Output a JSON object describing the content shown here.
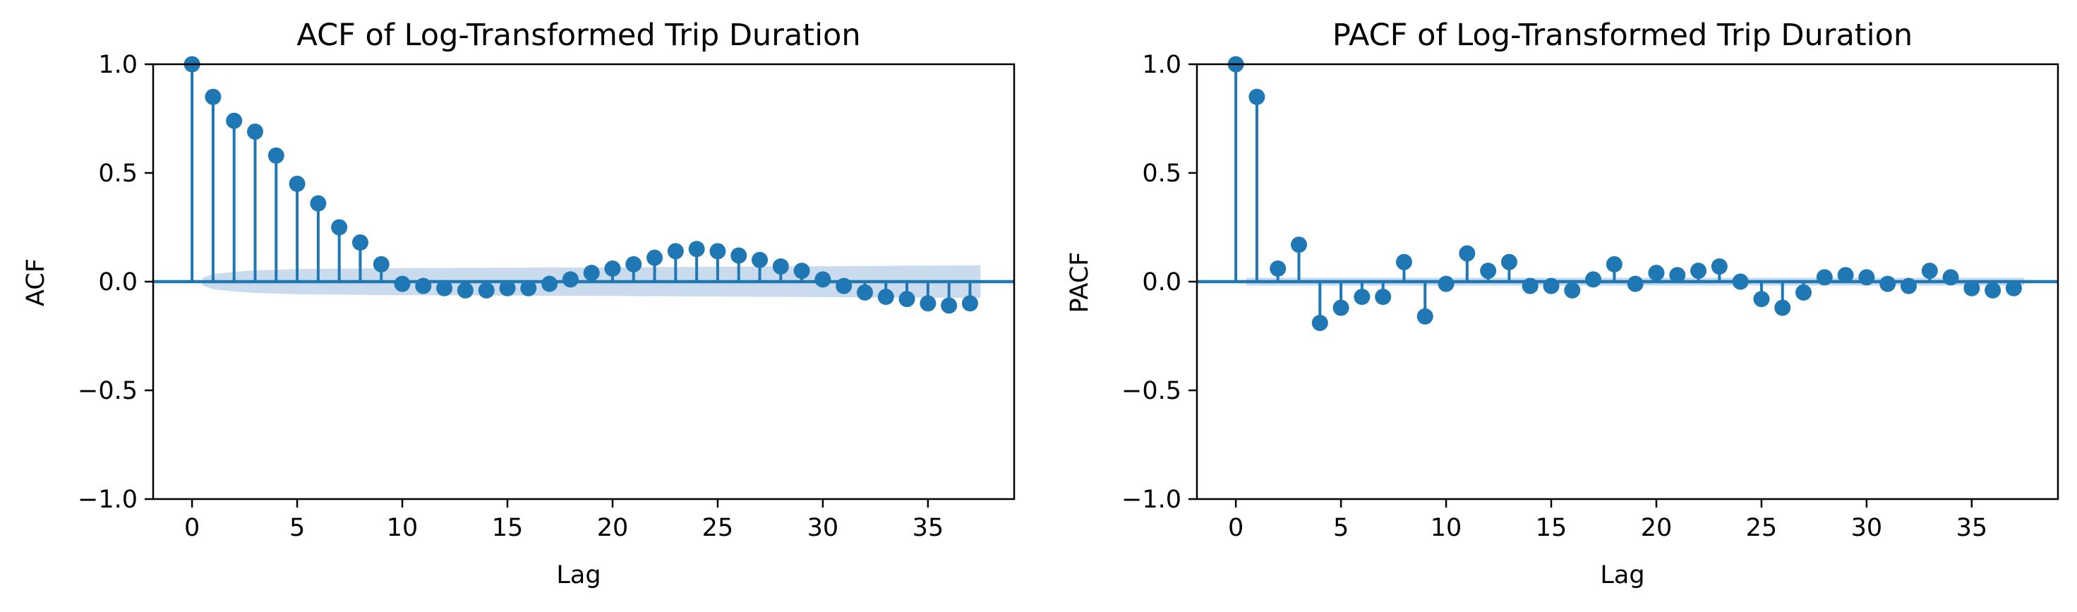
{
  "colors": {
    "series": "#1f77b4",
    "band": "#c6d9ec",
    "axis": "#000000"
  },
  "chart_data": [
    {
      "type": "stem",
      "title": "ACF of Log-Transformed Trip Duration",
      "xlabel": "Lag",
      "ylabel": "ACF",
      "xlim": [
        -1.85,
        39.1
      ],
      "ylim": [
        -1.0,
        1.0
      ],
      "xticks": [
        0,
        5,
        10,
        15,
        20,
        25,
        30,
        35
      ],
      "yticks": [
        -1.0,
        -0.5,
        0.0,
        0.5,
        1.0
      ],
      "xtick_labels": [
        "0",
        "5",
        "10",
        "15",
        "20",
        "25",
        "30",
        "35"
      ],
      "ytick_labels": [
        "−1.0",
        "−0.5",
        "0.0",
        "0.5",
        "1.0"
      ],
      "grid": false,
      "x": [
        0,
        1,
        2,
        3,
        4,
        5,
        6,
        7,
        8,
        9,
        10,
        11,
        12,
        13,
        14,
        15,
        16,
        17,
        18,
        19,
        20,
        21,
        22,
        23,
        24,
        25,
        26,
        27,
        28,
        29,
        30,
        31,
        32,
        33,
        34,
        35,
        36,
        37
      ],
      "values": [
        1.0,
        0.85,
        0.74,
        0.69,
        0.58,
        0.45,
        0.36,
        0.25,
        0.18,
        0.08,
        -0.01,
        -0.02,
        -0.03,
        -0.04,
        -0.04,
        -0.03,
        -0.03,
        -0.01,
        0.01,
        0.04,
        0.06,
        0.08,
        0.11,
        0.14,
        0.15,
        0.14,
        0.12,
        0.1,
        0.07,
        0.05,
        0.01,
        -0.02,
        -0.05,
        -0.07,
        -0.08,
        -0.1,
        -0.11,
        -0.1
      ],
      "confidence_band": {
        "x": [
          0.5,
          1,
          2,
          3,
          5,
          10,
          20,
          30,
          37.5
        ],
        "upper": [
          0.018,
          0.035,
          0.045,
          0.052,
          0.058,
          0.062,
          0.066,
          0.071,
          0.075
        ],
        "lower": [
          -0.018,
          -0.035,
          -0.045,
          -0.052,
          -0.058,
          -0.062,
          -0.066,
          -0.071,
          -0.075
        ]
      }
    },
    {
      "type": "stem",
      "title": "PACF of Log-Transformed Trip Duration",
      "xlabel": "Lag",
      "ylabel": "PACF",
      "xlim": [
        -1.85,
        39.1
      ],
      "ylim": [
        -1.0,
        1.0
      ],
      "xticks": [
        0,
        5,
        10,
        15,
        20,
        25,
        30,
        35
      ],
      "yticks": [
        -1.0,
        -0.5,
        0.0,
        0.5,
        1.0
      ],
      "xtick_labels": [
        "0",
        "5",
        "10",
        "15",
        "20",
        "25",
        "30",
        "35"
      ],
      "ytick_labels": [
        "−1.0",
        "−0.5",
        "0.0",
        "0.5",
        "1.0"
      ],
      "grid": false,
      "x": [
        0,
        1,
        2,
        3,
        4,
        5,
        6,
        7,
        8,
        9,
        10,
        11,
        12,
        13,
        14,
        15,
        16,
        17,
        18,
        19,
        20,
        21,
        22,
        23,
        24,
        25,
        26,
        27,
        28,
        29,
        30,
        31,
        32,
        33,
        34,
        35,
        36,
        37
      ],
      "values": [
        1.0,
        0.85,
        0.06,
        0.17,
        -0.19,
        -0.12,
        -0.07,
        -0.07,
        0.09,
        -0.16,
        -0.01,
        0.13,
        0.05,
        0.09,
        -0.02,
        -0.02,
        -0.04,
        0.01,
        0.08,
        -0.01,
        0.04,
        0.03,
        0.05,
        0.07,
        0.0,
        -0.08,
        -0.12,
        -0.05,
        0.02,
        0.03,
        0.02,
        -0.01,
        -0.02,
        0.05,
        0.02,
        -0.03,
        -0.04,
        -0.03
      ],
      "confidence_band": {
        "x": [
          0.5,
          37.5
        ],
        "upper": [
          0.018,
          0.018
        ],
        "lower": [
          -0.018,
          -0.018
        ]
      }
    }
  ]
}
